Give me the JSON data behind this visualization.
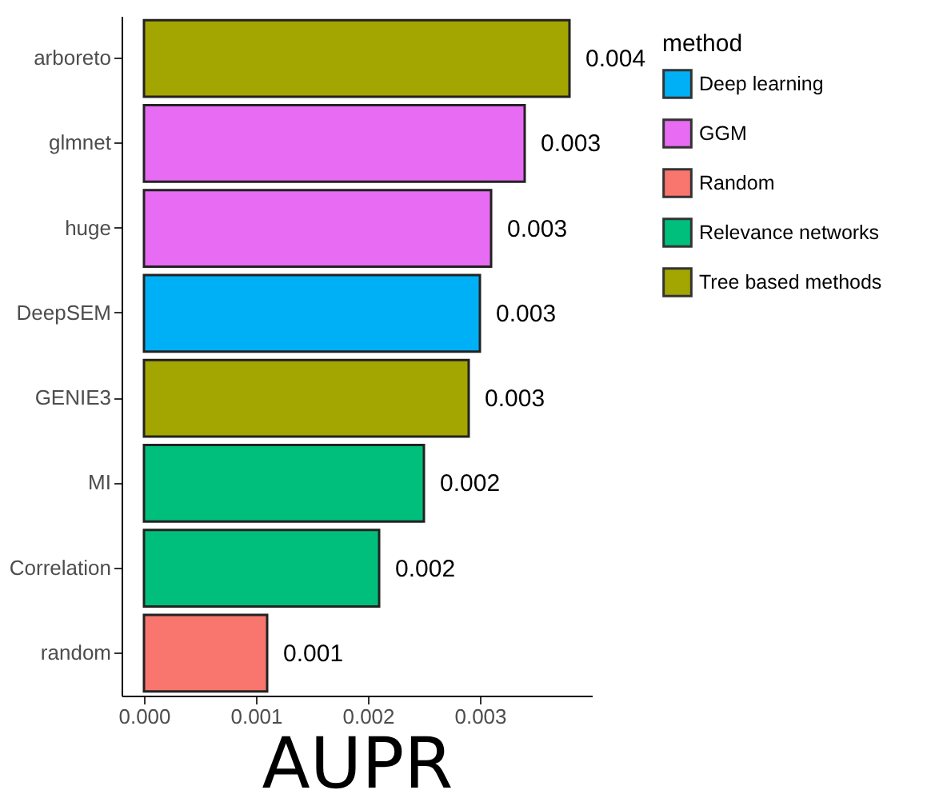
{
  "chart_data": {
    "type": "bar",
    "orientation": "horizontal",
    "xlabel": "AUPR",
    "legend_title": "method",
    "legend": "right",
    "categories": [
      "arboreto",
      "glmnet",
      "huge",
      "DeepSEM",
      "GENIE3",
      "MI",
      "Correlation",
      "random"
    ],
    "series": [
      {
        "name": "Deep learning",
        "color": "#00b0f6",
        "values": [
          null,
          null,
          null,
          0.003,
          null,
          null,
          null,
          null
        ],
        "value_labels": [
          null,
          null,
          null,
          "0.003",
          null,
          null,
          null,
          null
        ]
      },
      {
        "name": "GGM",
        "color": "#e76bf3",
        "values": [
          null,
          0.0034,
          0.0031,
          null,
          null,
          null,
          null,
          null
        ],
        "value_labels": [
          null,
          "0.003",
          "0.003",
          null,
          null,
          null,
          null,
          null
        ]
      },
      {
        "name": "Random",
        "color": "#f8766d",
        "values": [
          null,
          null,
          null,
          null,
          null,
          null,
          null,
          0.0011
        ],
        "value_labels": [
          null,
          null,
          null,
          null,
          null,
          null,
          null,
          "0.001"
        ]
      },
      {
        "name": "Relevance networks",
        "color": "#00bf7d",
        "values": [
          null,
          null,
          null,
          null,
          null,
          0.0025,
          0.0021,
          null
        ],
        "value_labels": [
          null,
          null,
          null,
          null,
          null,
          "0.002",
          "0.002",
          null
        ]
      },
      {
        "name": "Tree based methods",
        "color": "#a3a500",
        "values": [
          0.0038,
          null,
          null,
          null,
          0.0029,
          null,
          null,
          null
        ],
        "value_labels": [
          "0.004",
          null,
          null,
          null,
          "0.003",
          null,
          null,
          null
        ]
      }
    ],
    "xlim": [
      -0.0002,
      0.004
    ],
    "xticks": [
      {
        "value": 0,
        "label": "0.000"
      },
      {
        "value": 0.001,
        "label": "0.001"
      },
      {
        "value": 0.002,
        "label": "0.002"
      },
      {
        "value": 0.003,
        "label": "0.003"
      }
    ]
  }
}
